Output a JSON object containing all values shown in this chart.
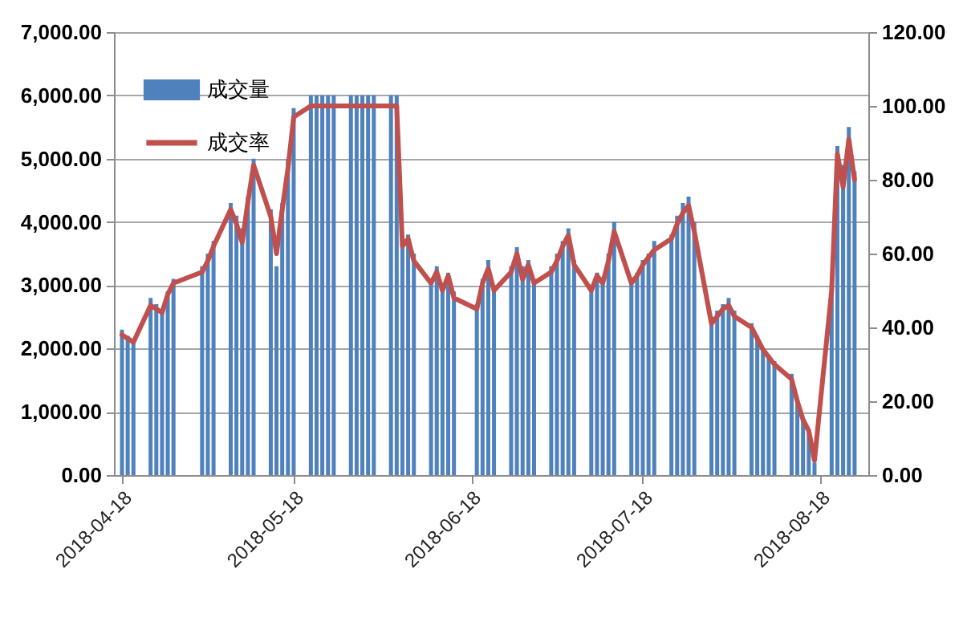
{
  "chart_data": {
    "type": "bar",
    "x": [
      "2018-04-18",
      "2018-04-19",
      "2018-04-20",
      "2018-04-23",
      "2018-04-24",
      "2018-04-25",
      "2018-04-26",
      "2018-04-27",
      "2018-05-02",
      "2018-05-03",
      "2018-05-04",
      "2018-05-07",
      "2018-05-08",
      "2018-05-09",
      "2018-05-10",
      "2018-05-11",
      "2018-05-14",
      "2018-05-15",
      "2018-05-16",
      "2018-05-17",
      "2018-05-18",
      "2018-05-21",
      "2018-05-22",
      "2018-05-23",
      "2018-05-24",
      "2018-05-25",
      "2018-05-28",
      "2018-05-29",
      "2018-05-30",
      "2018-05-31",
      "2018-06-01",
      "2018-06-04",
      "2018-06-05",
      "2018-06-06",
      "2018-06-07",
      "2018-06-08",
      "2018-06-11",
      "2018-06-12",
      "2018-06-13",
      "2018-06-14",
      "2018-06-15",
      "2018-06-19",
      "2018-06-20",
      "2018-06-21",
      "2018-06-22",
      "2018-06-25",
      "2018-06-26",
      "2018-06-27",
      "2018-06-28",
      "2018-06-29",
      "2018-07-02",
      "2018-07-03",
      "2018-07-04",
      "2018-07-05",
      "2018-07-06",
      "2018-07-09",
      "2018-07-10",
      "2018-07-11",
      "2018-07-12",
      "2018-07-13",
      "2018-07-16",
      "2018-07-17",
      "2018-07-18",
      "2018-07-19",
      "2018-07-20",
      "2018-07-23",
      "2018-07-24",
      "2018-07-25",
      "2018-07-26",
      "2018-07-27",
      "2018-07-30",
      "2018-07-31",
      "2018-08-01",
      "2018-08-02",
      "2018-08-03",
      "2018-08-06",
      "2018-08-07",
      "2018-08-08",
      "2018-08-09",
      "2018-08-10",
      "2018-08-13",
      "2018-08-14",
      "2018-08-15",
      "2018-08-16",
      "2018-08-17",
      "2018-08-20",
      "2018-08-21",
      "2018-08-22",
      "2018-08-23",
      "2018-08-24"
    ],
    "xlim": [
      "2018-04-18",
      "2018-08-25"
    ],
    "xticks": [
      "2018-04-18",
      "2018-05-18",
      "2018-06-18",
      "2018-07-18",
      "2018-08-18"
    ],
    "ylim": [
      0,
      7000
    ],
    "yticks": [
      {
        "value": 0,
        "label": "0.00"
      },
      {
        "value": 1000,
        "label": "1,000.00"
      },
      {
        "value": 2000,
        "label": "2,000.00"
      },
      {
        "value": 3000,
        "label": "3,000.00"
      },
      {
        "value": 4000,
        "label": "4,000.00"
      },
      {
        "value": 5000,
        "label": "5,000.00"
      },
      {
        "value": 6000,
        "label": "6,000.00"
      },
      {
        "value": 7000,
        "label": "7,000.00"
      }
    ],
    "y2lim": [
      0,
      120
    ],
    "y2ticks": [
      {
        "value": 0,
        "label": "0.00"
      },
      {
        "value": 20,
        "label": "20.00"
      },
      {
        "value": 40,
        "label": "40.00"
      },
      {
        "value": 60,
        "label": "60.00"
      },
      {
        "value": 80,
        "label": "80.00"
      },
      {
        "value": 100,
        "label": "100.00"
      },
      {
        "value": 120,
        "label": "120.00"
      }
    ],
    "grid": "y",
    "legend": "top left",
    "series": [
      {
        "name": "成交量",
        "color": "#4f81bd",
        "values": [
          2300,
          2200,
          2100,
          2800,
          2700,
          2600,
          2900,
          3100,
          3300,
          3500,
          3700,
          4300,
          4100,
          3900,
          4400,
          5000,
          4200,
          3300,
          4300,
          5000,
          5800,
          6000,
          6000,
          6000,
          6000,
          6000,
          6000,
          6000,
          6000,
          6000,
          6000,
          6000,
          6000,
          3700,
          3800,
          3500,
          3100,
          3300,
          3000,
          3200,
          2900,
          2700,
          3100,
          3400,
          3000,
          3300,
          3600,
          3300,
          3400,
          3100,
          3300,
          3500,
          3700,
          3900,
          3400,
          3000,
          3200,
          3100,
          3500,
          4000,
          3100,
          3200,
          3400,
          3500,
          3700,
          3800,
          4100,
          4300,
          4400,
          4000,
          2500,
          2600,
          2700,
          2800,
          2600,
          2400,
          2200,
          2000,
          1900,
          1800,
          1600,
          1200,
          900,
          700,
          200,
          3000,
          5200,
          4900,
          5500,
          4800
        ]
      },
      {
        "name": "成交率",
        "type": "line",
        "color": "#c0504d",
        "axis": "y2",
        "values": [
          38,
          37,
          36,
          46,
          45,
          44,
          49,
          52,
          55,
          58,
          62,
          72,
          68,
          63,
          74,
          84,
          70,
          60,
          72,
          83,
          97,
          100,
          100,
          100,
          100,
          100,
          100,
          100,
          100,
          100,
          100,
          100,
          100,
          62,
          64,
          58,
          52,
          55,
          50,
          54,
          48,
          45,
          52,
          56,
          50,
          55,
          60,
          53,
          57,
          52,
          55,
          58,
          62,
          65,
          57,
          50,
          54,
          52,
          58,
          66,
          52,
          54,
          57,
          59,
          61,
          64,
          68,
          71,
          73,
          66,
          41,
          43,
          45,
          46,
          43,
          40,
          37,
          34,
          32,
          30,
          26,
          20,
          15,
          12,
          4,
          50,
          87,
          78,
          91,
          80
        ]
      }
    ]
  }
}
